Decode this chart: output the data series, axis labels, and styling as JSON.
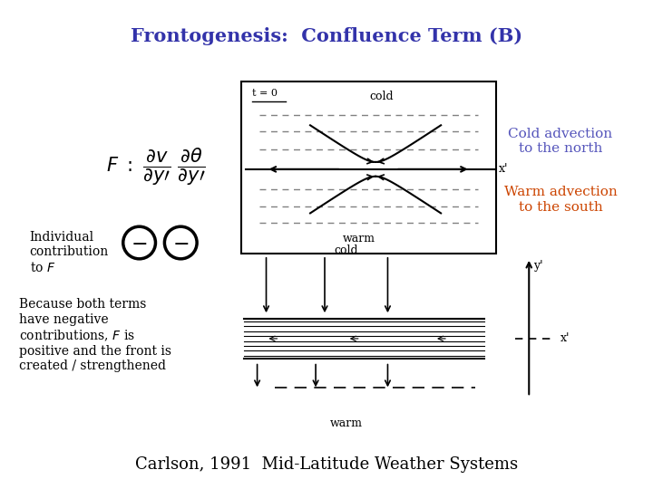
{
  "title": "Frontogenesis:  Confluence Term (B)",
  "title_color": "#3333aa",
  "title_fontsize": 15,
  "cold_advection_text": "Cold advection\nto the north",
  "cold_advection_color": "#5555bb",
  "warm_advection_text": "Warm advection\nto the south",
  "warm_advection_color": "#cc4400",
  "individual_text": "Individual\ncontribution\nto $F$",
  "because_text": "Because both terms\nhave negative\ncontributions, $F$ is\npositive and the front is\ncreated / strengthened",
  "footer": "Carlson, 1991  Mid-Latitude Weather Systems",
  "footer_fontsize": 13,
  "bg_color": "#ffffff"
}
